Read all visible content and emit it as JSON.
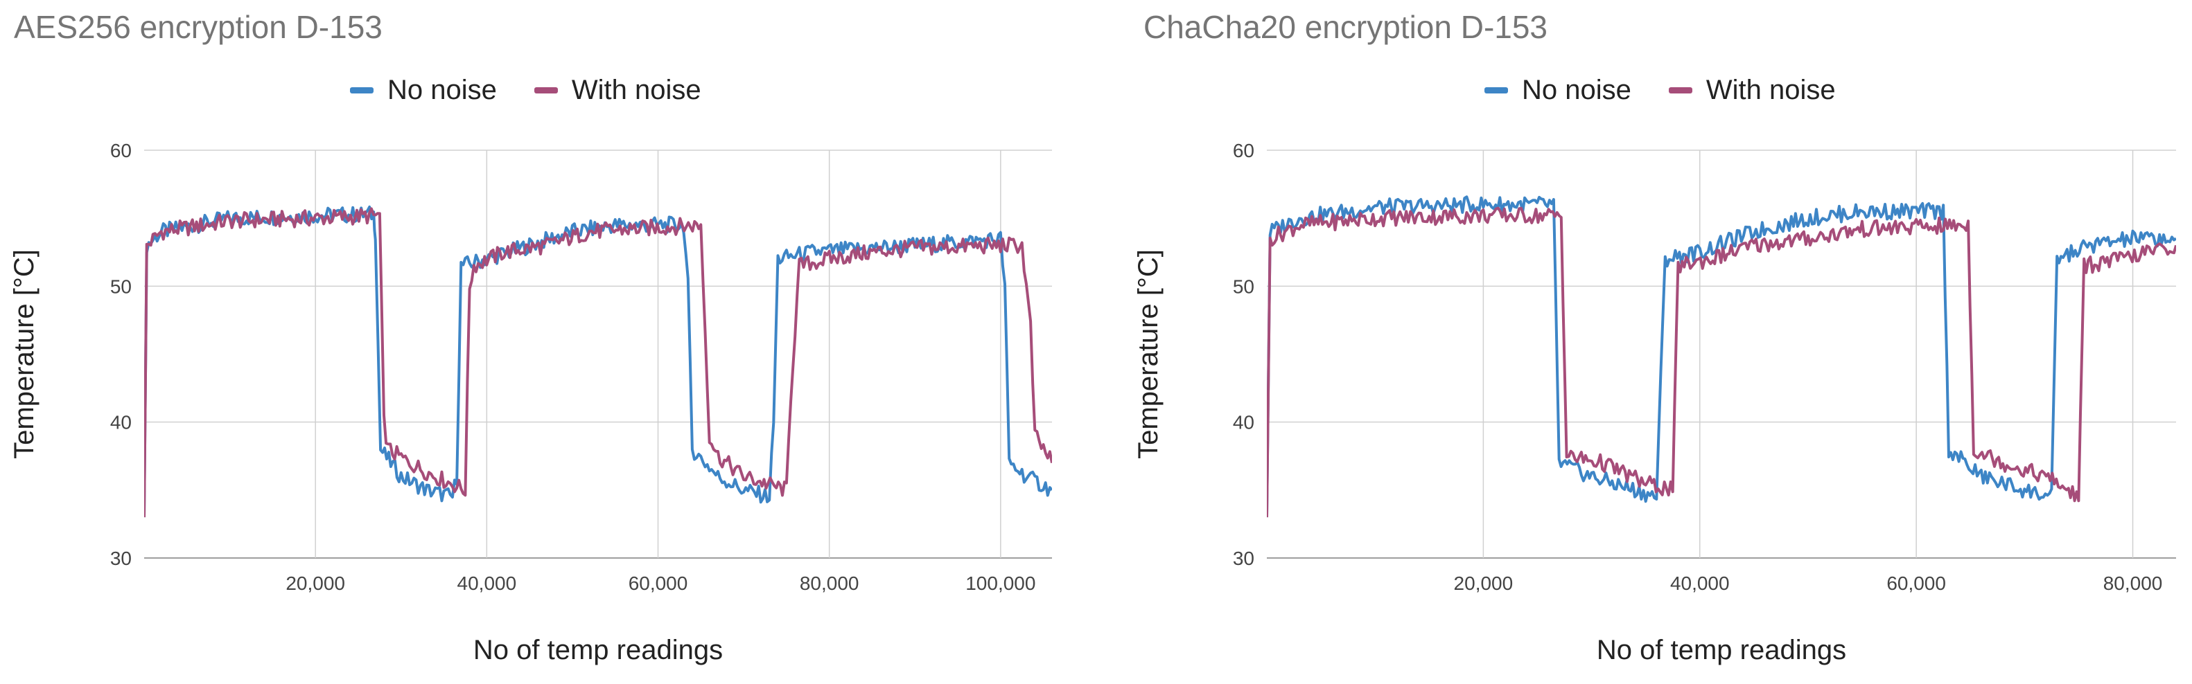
{
  "chart_data": [
    {
      "type": "line",
      "title": "AES256 encryption D-153",
      "xlabel": "No of temp readings",
      "ylabel": "Temperature [°C]",
      "xlim": [
        0,
        106000
      ],
      "ylim": [
        30,
        60
      ],
      "x_ticks": [
        20000,
        40000,
        60000,
        80000,
        100000
      ],
      "x_tick_labels": [
        "20,000",
        "40,000",
        "60,000",
        "80,000",
        "100,000"
      ],
      "y_ticks": [
        30,
        40,
        50,
        60
      ],
      "y_tick_labels": [
        "30",
        "40",
        "50",
        "60"
      ],
      "grid": true,
      "legend_position": "top-center",
      "series": [
        {
          "name": "No noise",
          "color": "#3d85c6",
          "points": [
            [
              0,
              33
            ],
            [
              300,
              53
            ],
            [
              2000,
              54
            ],
            [
              10000,
              55
            ],
            [
              20000,
              55.2
            ],
            [
              26800,
              55.3
            ],
            [
              27000,
              54
            ],
            [
              27600,
              38
            ],
            [
              30000,
              36
            ],
            [
              33000,
              35
            ],
            [
              36000,
              34.5
            ],
            [
              36500,
              36
            ],
            [
              37000,
              51.5
            ],
            [
              40000,
              52
            ],
            [
              45000,
              53
            ],
            [
              50000,
              54
            ],
            [
              55000,
              54.5
            ],
            [
              63000,
              54.5
            ],
            [
              63500,
              50
            ],
            [
              64000,
              38
            ],
            [
              67000,
              36
            ],
            [
              70000,
              35
            ],
            [
              73000,
              34.5
            ],
            [
              73500,
              40
            ],
            [
              74000,
              52
            ],
            [
              78000,
              52.5
            ],
            [
              85000,
              52.8
            ],
            [
              90000,
              53
            ],
            [
              95000,
              53.2
            ],
            [
              100000,
              53.5
            ],
            [
              100500,
              50
            ],
            [
              101000,
              37
            ],
            [
              103000,
              36
            ],
            [
              106000,
              35
            ]
          ]
        },
        {
          "name": "With noise",
          "color": "#a64d79",
          "points": [
            [
              0,
              33
            ],
            [
              300,
              53
            ],
            [
              2000,
              54
            ],
            [
              10000,
              54.8
            ],
            [
              20000,
              55
            ],
            [
              27500,
              55.2
            ],
            [
              28000,
              40
            ],
            [
              28500,
              38
            ],
            [
              31000,
              37
            ],
            [
              34000,
              36
            ],
            [
              37500,
              35
            ],
            [
              38000,
              50
            ],
            [
              38500,
              51.5
            ],
            [
              42000,
              52.5
            ],
            [
              47000,
              53
            ],
            [
              52000,
              54
            ],
            [
              57000,
              54.2
            ],
            [
              65000,
              54.5
            ],
            [
              66000,
              39
            ],
            [
              67000,
              37.5
            ],
            [
              70000,
              36
            ],
            [
              75000,
              35
            ],
            [
              75500,
              42
            ],
            [
              76500,
              51.5
            ],
            [
              80000,
              52
            ],
            [
              85000,
              52.5
            ],
            [
              90000,
              52.8
            ],
            [
              100000,
              53
            ],
            [
              102500,
              53
            ],
            [
              103500,
              47
            ],
            [
              104000,
              39
            ],
            [
              106000,
              37
            ]
          ]
        }
      ]
    },
    {
      "type": "line",
      "title": "ChaCha20 encryption D-153",
      "xlabel": "No of temp readings",
      "ylabel": "Temperature [°C]",
      "xlim": [
        0,
        84000
      ],
      "ylim": [
        30,
        60
      ],
      "x_ticks": [
        20000,
        40000,
        60000,
        80000
      ],
      "x_tick_labels": [
        "20,000",
        "40,000",
        "60,000",
        "80,000"
      ],
      "y_ticks": [
        30,
        40,
        50,
        60
      ],
      "y_tick_labels": [
        "30",
        "40",
        "50",
        "60"
      ],
      "grid": true,
      "legend_position": "top-center",
      "series": [
        {
          "name": "No noise",
          "color": "#3d85c6",
          "points": [
            [
              0,
              33
            ],
            [
              300,
              54
            ],
            [
              3000,
              55
            ],
            [
              10000,
              55.8
            ],
            [
              20000,
              56
            ],
            [
              26500,
              56
            ],
            [
              27000,
              37
            ],
            [
              30000,
              36
            ],
            [
              34000,
              35
            ],
            [
              36000,
              34.5
            ],
            [
              36800,
              52
            ],
            [
              40000,
              52.5
            ],
            [
              45000,
              54
            ],
            [
              50000,
              55
            ],
            [
              55000,
              55.5
            ],
            [
              62500,
              55.5
            ],
            [
              63000,
              38
            ],
            [
              66000,
              36
            ],
            [
              70000,
              35
            ],
            [
              72500,
              34.5
            ],
            [
              73000,
              52
            ],
            [
              76000,
              53
            ],
            [
              80000,
              53.5
            ],
            [
              84000,
              53.5
            ]
          ]
        },
        {
          "name": "With noise",
          "color": "#a64d79",
          "points": [
            [
              0,
              33
            ],
            [
              300,
              53.5
            ],
            [
              3000,
              54.5
            ],
            [
              10000,
              55
            ],
            [
              20000,
              55.2
            ],
            [
              27200,
              55.2
            ],
            [
              27700,
              37.5
            ],
            [
              31000,
              37
            ],
            [
              35000,
              35.5
            ],
            [
              37500,
              35
            ],
            [
              38000,
              51.5
            ],
            [
              41000,
              52
            ],
            [
              45000,
              53
            ],
            [
              50000,
              53.5
            ],
            [
              55000,
              54.2
            ],
            [
              64800,
              54.5
            ],
            [
              65300,
              38
            ],
            [
              68000,
              37
            ],
            [
              72000,
              36
            ],
            [
              75000,
              34.5
            ],
            [
              75500,
              51.5
            ],
            [
              79000,
              52
            ],
            [
              84000,
              53
            ]
          ]
        }
      ]
    }
  ]
}
